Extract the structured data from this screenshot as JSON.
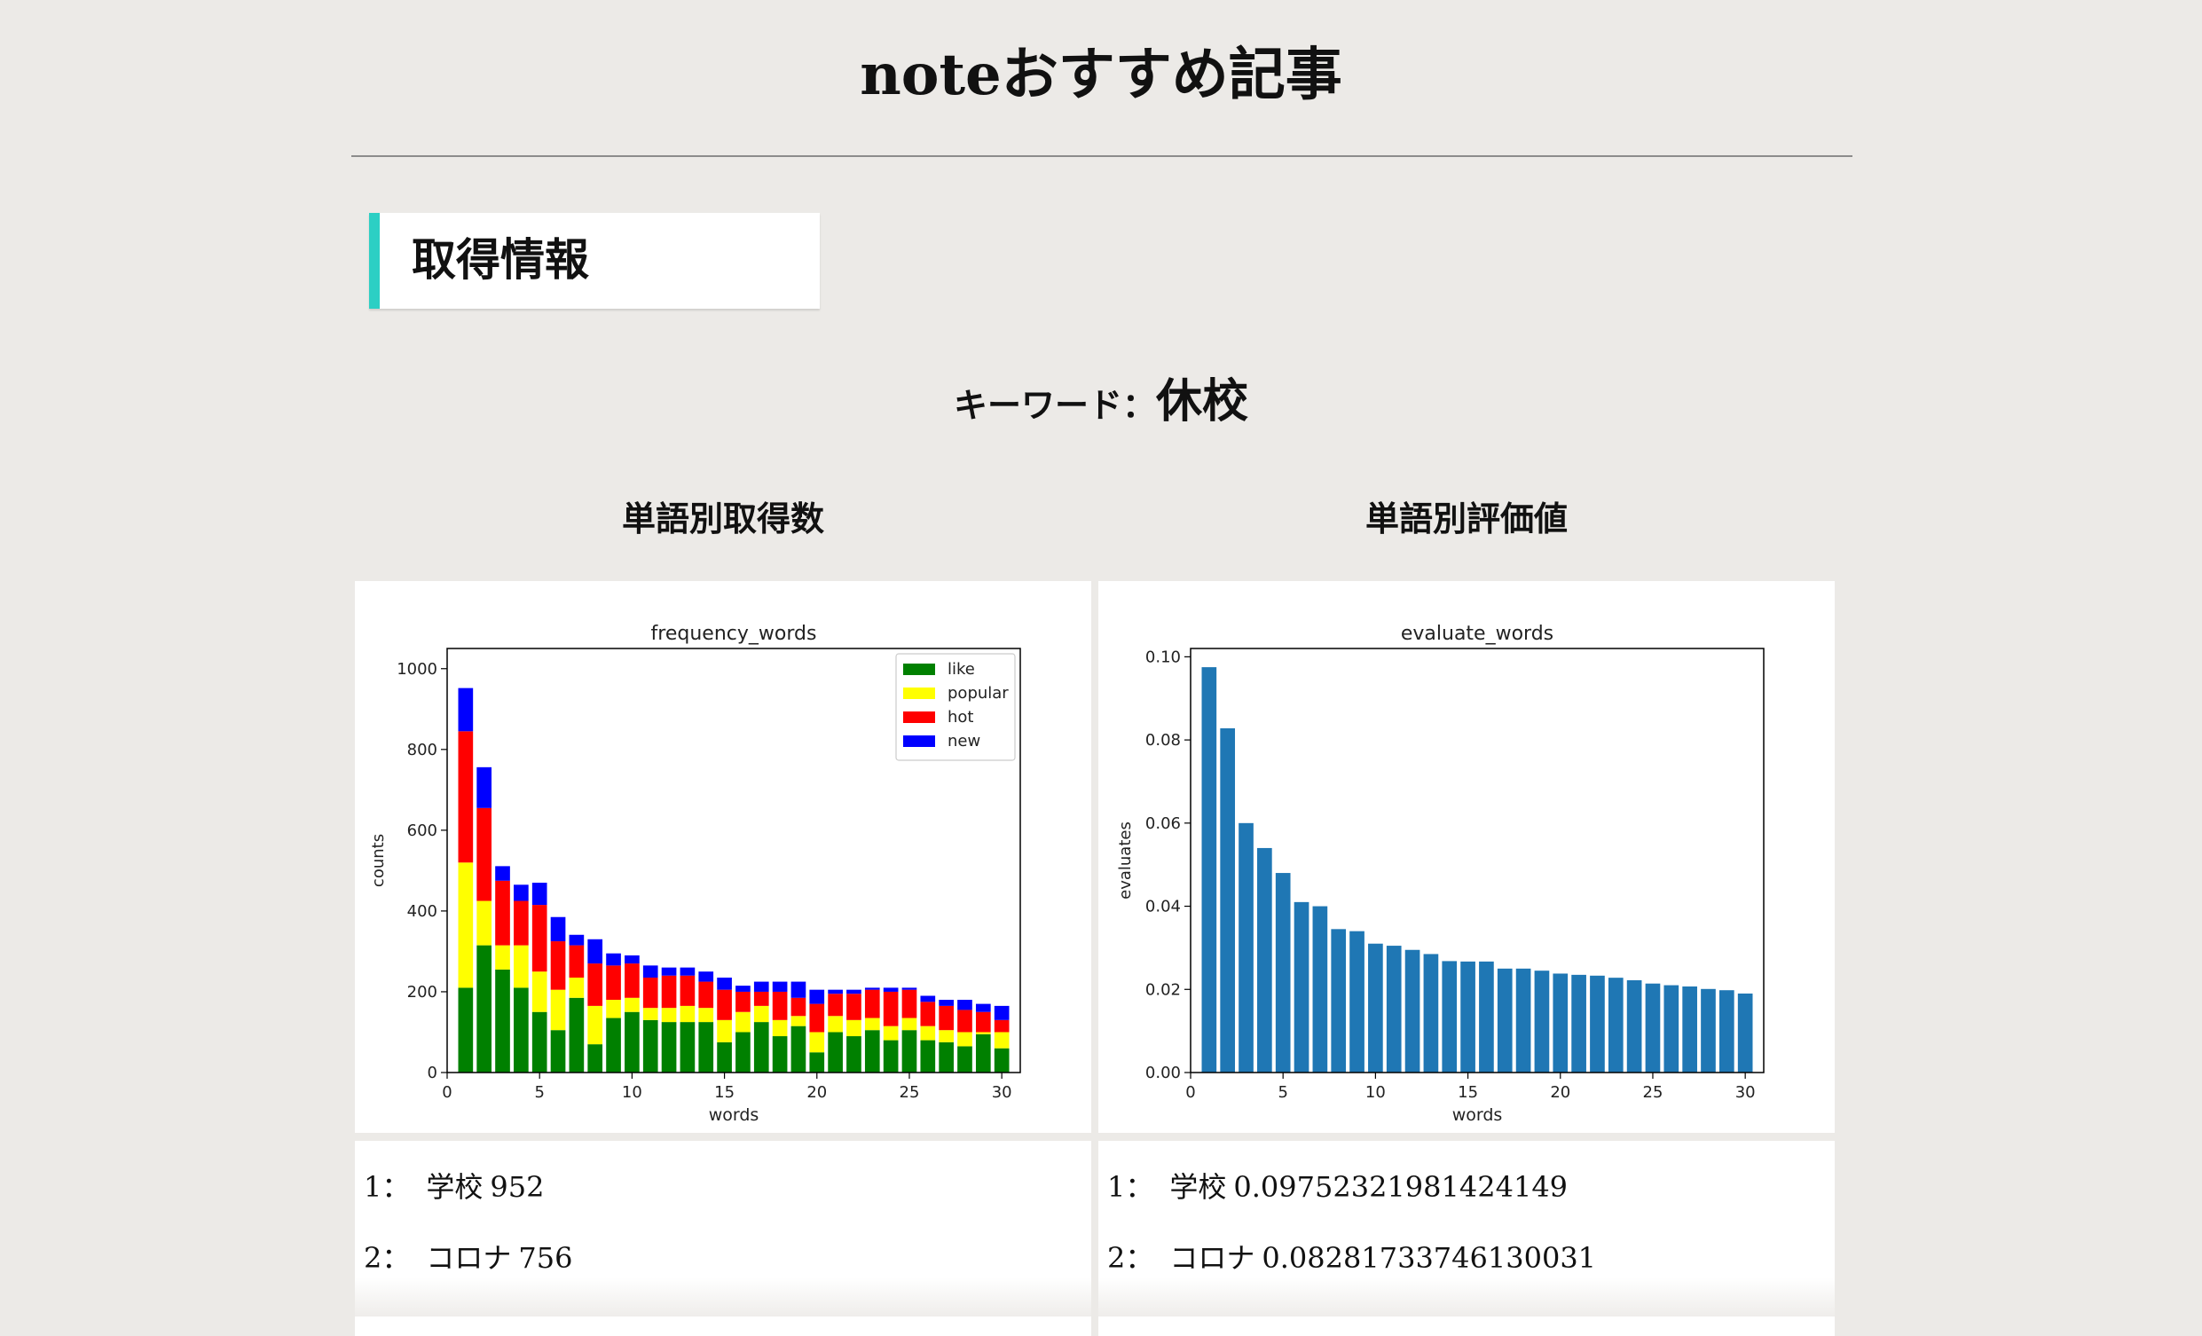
{
  "page": {
    "title": "noteおすすめ記事"
  },
  "section": {
    "title": "取得情報"
  },
  "keyword": {
    "label": "キーワード：",
    "value": "休校"
  },
  "columns": {
    "left_title": "単語別取得数",
    "right_title": "単語別評価値"
  },
  "colors": {
    "accent": "#2ccfc4",
    "like": "#008000",
    "popular": "#ffff00",
    "hot": "#ff0000",
    "new": "#0000ff",
    "evaluate_bar": "#1f77b4"
  },
  "chart_data": [
    {
      "type": "bar",
      "stacked": true,
      "title": "frequency_words",
      "xlabel": "words",
      "ylabel": "counts",
      "xlim": [
        0,
        31
      ],
      "ylim": [
        0,
        1050
      ],
      "xticks": [
        0,
        5,
        10,
        15,
        20,
        25,
        30
      ],
      "yticks": [
        0,
        200,
        400,
        600,
        800,
        1000
      ],
      "legend": "top-right",
      "x": [
        1,
        2,
        3,
        4,
        5,
        6,
        7,
        8,
        9,
        10,
        11,
        12,
        13,
        14,
        15,
        16,
        17,
        18,
        19,
        20,
        21,
        22,
        23,
        24,
        25,
        26,
        27,
        28,
        29,
        30
      ],
      "series": [
        {
          "name": "like",
          "color": "#008000",
          "values": [
            210,
            315,
            255,
            210,
            150,
            105,
            185,
            70,
            135,
            150,
            130,
            125,
            125,
            125,
            75,
            100,
            125,
            90,
            115,
            50,
            100,
            90,
            105,
            80,
            105,
            80,
            75,
            65,
            95,
            60
          ]
        },
        {
          "name": "popular",
          "color": "#ffff00",
          "values": [
            310,
            110,
            60,
            105,
            100,
            100,
            50,
            95,
            45,
            35,
            30,
            35,
            40,
            35,
            55,
            50,
            40,
            40,
            25,
            50,
            40,
            40,
            30,
            35,
            30,
            35,
            30,
            35,
            5,
            40
          ]
        },
        {
          "name": "hot",
          "color": "#ff0000",
          "values": [
            325,
            230,
            160,
            110,
            165,
            120,
            80,
            105,
            85,
            85,
            75,
            80,
            75,
            65,
            75,
            50,
            35,
            70,
            45,
            70,
            55,
            65,
            70,
            85,
            70,
            60,
            60,
            55,
            50,
            30
          ]
        },
        {
          "name": "new",
          "color": "#0000ff",
          "values": [
            107,
            101,
            36,
            40,
            55,
            60,
            26,
            60,
            30,
            20,
            30,
            20,
            20,
            25,
            30,
            15,
            25,
            25,
            40,
            35,
            10,
            10,
            5,
            10,
            5,
            15,
            15,
            25,
            20,
            35
          ]
        }
      ],
      "totals": [
        952,
        756,
        511,
        465,
        470,
        385,
        341,
        330,
        295,
        290,
        265,
        260,
        260,
        250,
        235,
        215,
        225,
        225,
        225,
        205,
        205,
        205,
        210,
        210,
        210,
        190,
        180,
        180,
        170,
        165
      ]
    },
    {
      "type": "bar",
      "title": "evaluate_words",
      "xlabel": "words",
      "ylabel": "evaluates",
      "xlim": [
        0,
        31
      ],
      "ylim": [
        0,
        0.102
      ],
      "xticks": [
        0,
        5,
        10,
        15,
        20,
        25,
        30
      ],
      "yticks": [
        0,
        0.02,
        0.04,
        0.06,
        0.08,
        0.1
      ],
      "ytick_labels": [
        "0.00",
        "0.02",
        "0.04",
        "0.06",
        "0.08",
        "0.10"
      ],
      "color": "#1f77b4",
      "x": [
        1,
        2,
        3,
        4,
        5,
        6,
        7,
        8,
        9,
        10,
        11,
        12,
        13,
        14,
        15,
        16,
        17,
        18,
        19,
        20,
        21,
        22,
        23,
        24,
        25,
        26,
        27,
        28,
        29,
        30
      ],
      "values": [
        0.0975,
        0.0828,
        0.06,
        0.054,
        0.048,
        0.041,
        0.04,
        0.0345,
        0.034,
        0.031,
        0.0305,
        0.0295,
        0.0285,
        0.0268,
        0.0267,
        0.0267,
        0.025,
        0.025,
        0.0245,
        0.0238,
        0.0235,
        0.0233,
        0.0228,
        0.0222,
        0.0214,
        0.021,
        0.0207,
        0.0201,
        0.0198,
        0.019
      ]
    }
  ],
  "lists": {
    "frequency": [
      {
        "rank": "1：",
        "word": "学校",
        "value": "952"
      },
      {
        "rank": "2：",
        "word": "コロナ",
        "value": "756"
      }
    ],
    "evaluate": [
      {
        "rank": "1：",
        "word": "学校",
        "value": "0.09752321981424149"
      },
      {
        "rank": "2：",
        "word": "コロナ",
        "value": "0.08281733746130031"
      }
    ]
  }
}
